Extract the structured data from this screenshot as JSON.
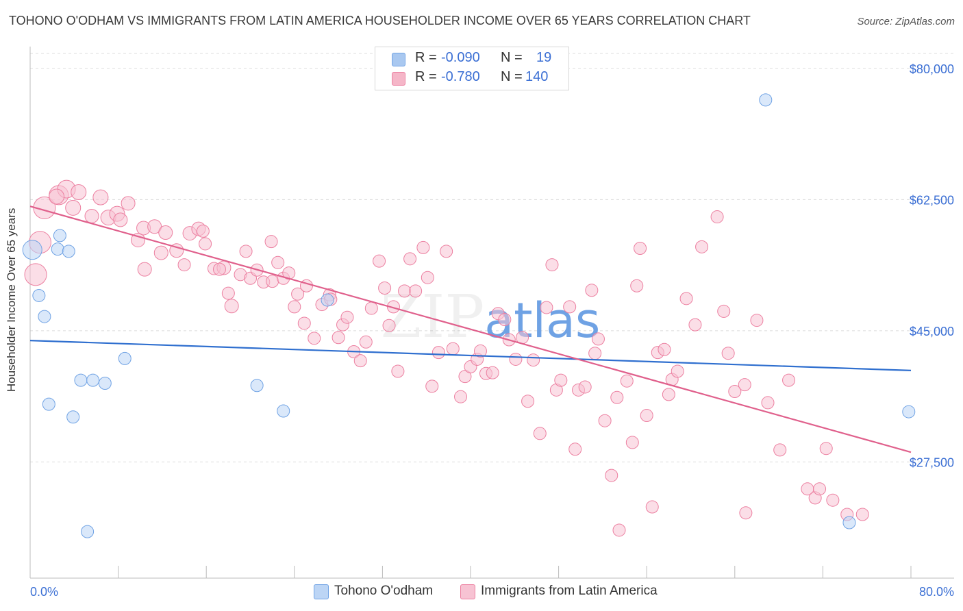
{
  "title": "TOHONO O'ODHAM VS IMMIGRANTS FROM LATIN AMERICA HOUSEHOLDER INCOME OVER 65 YEARS CORRELATION CHART",
  "source": "Source: ZipAtlas.com",
  "watermark": "ZIPatlas",
  "legend": {
    "rows": [
      {
        "r_label": "R =",
        "r_value": "-0.090",
        "n_label": "N =",
        "n_value": "19",
        "color": "#a9c8f0"
      },
      {
        "r_label": "R =",
        "r_value": "-0.780",
        "n_label": "N =",
        "n_value": "140",
        "color": "#f5b6c8"
      }
    ]
  },
  "chart_data": {
    "type": "scatter",
    "xlabel": "",
    "ylabel": "Householder Income Over 65 years",
    "xlim": [
      0,
      80
    ],
    "ylim": [
      12000,
      82000
    ],
    "x_tick_labels": [
      "0.0%",
      "80.0%"
    ],
    "y_ticks": [
      27500,
      45000,
      62500,
      80000
    ],
    "y_tick_labels": [
      "$27,500",
      "$45,000",
      "$62,500",
      "$80,000"
    ],
    "grid": true,
    "legend_position": "top-center",
    "series": [
      {
        "name": "Tohono O'odham",
        "color": "#6fa2e4",
        "fill": "#bcd5f5",
        "trend": {
          "x": [
            0,
            80
          ],
          "y": [
            43700,
            39700
          ]
        },
        "points": [
          [
            0.2,
            55800,
            14
          ],
          [
            2.7,
            57700,
            9
          ],
          [
            2.5,
            55900,
            9
          ],
          [
            3.5,
            55600,
            9
          ],
          [
            0.8,
            49700,
            9
          ],
          [
            1.3,
            46900,
            9
          ],
          [
            8.6,
            41300,
            9
          ],
          [
            4.6,
            38400,
            9
          ],
          [
            5.7,
            38400,
            9
          ],
          [
            6.8,
            38000,
            9
          ],
          [
            1.7,
            35200,
            9
          ],
          [
            3.9,
            33500,
            9
          ],
          [
            20.6,
            37700,
            9
          ],
          [
            23.0,
            34300,
            9
          ],
          [
            27.0,
            49100,
            9
          ],
          [
            66.8,
            75800,
            9
          ],
          [
            79.8,
            34200,
            9
          ],
          [
            74.4,
            19400,
            9
          ],
          [
            5.2,
            18200,
            9
          ]
        ]
      },
      {
        "name": "Immigrants from Latin America",
        "color": "#ec7fa0",
        "fill": "#f7c3d3",
        "trend": {
          "x": [
            0,
            80
          ],
          "y": [
            61600,
            28800
          ]
        },
        "points": [
          [
            0.5,
            52500,
            16
          ],
          [
            0.9,
            56800,
            16
          ],
          [
            1.3,
            61400,
            16
          ],
          [
            2.6,
            63100,
            14
          ],
          [
            3.3,
            63900,
            13
          ],
          [
            4.4,
            63500,
            11
          ],
          [
            3.9,
            61400,
            11
          ],
          [
            2.4,
            62900,
            11
          ],
          [
            6.4,
            62800,
            11
          ],
          [
            5.6,
            60300,
            10
          ],
          [
            7.1,
            60100,
            11
          ],
          [
            7.9,
            60600,
            11
          ],
          [
            8.2,
            59800,
            10
          ],
          [
            8.9,
            62000,
            10
          ],
          [
            9.8,
            57100,
            10
          ],
          [
            10.3,
            58700,
            10
          ],
          [
            11.3,
            58900,
            10
          ],
          [
            12.3,
            58100,
            10
          ],
          [
            11.9,
            55400,
            10
          ],
          [
            10.4,
            53200,
            10
          ],
          [
            13.3,
            55700,
            10
          ],
          [
            14.0,
            53800,
            9
          ],
          [
            14.5,
            58000,
            10
          ],
          [
            15.3,
            58600,
            10
          ],
          [
            15.7,
            58300,
            9
          ],
          [
            15.9,
            56600,
            9
          ],
          [
            16.7,
            53300,
            9
          ],
          [
            17.6,
            53400,
            10
          ],
          [
            17.2,
            53200,
            9
          ],
          [
            18.0,
            50000,
            9
          ],
          [
            18.3,
            48300,
            10
          ],
          [
            19.1,
            52500,
            9
          ],
          [
            19.6,
            55600,
            9
          ],
          [
            20.0,
            52000,
            9
          ],
          [
            20.6,
            53100,
            9
          ],
          [
            21.2,
            51500,
            9
          ],
          [
            22.0,
            51600,
            9
          ],
          [
            21.9,
            56900,
            9
          ],
          [
            22.5,
            54100,
            9
          ],
          [
            23.0,
            52000,
            9
          ],
          [
            23.5,
            52700,
            9
          ],
          [
            24.0,
            48200,
            9
          ],
          [
            24.3,
            49900,
            9
          ],
          [
            25.1,
            51000,
            9
          ],
          [
            24.9,
            46000,
            9
          ],
          [
            25.8,
            44000,
            9
          ],
          [
            26.5,
            48500,
            9
          ],
          [
            27.2,
            49800,
            9
          ],
          [
            27.3,
            49200,
            9
          ],
          [
            28.0,
            44100,
            9
          ],
          [
            28.4,
            45800,
            9
          ],
          [
            28.8,
            46800,
            9
          ],
          [
            29.4,
            42200,
            9
          ],
          [
            30.0,
            41000,
            9
          ],
          [
            30.5,
            43500,
            9
          ],
          [
            31.0,
            48000,
            9
          ],
          [
            31.7,
            54300,
            9
          ],
          [
            32.2,
            50700,
            9
          ],
          [
            32.6,
            45700,
            9
          ],
          [
            33.0,
            48200,
            9
          ],
          [
            33.4,
            39600,
            9
          ],
          [
            34.0,
            50300,
            9
          ],
          [
            34.5,
            54600,
            9
          ],
          [
            35.0,
            50300,
            9
          ],
          [
            35.7,
            56100,
            9
          ],
          [
            36.1,
            52100,
            9
          ],
          [
            36.5,
            37600,
            9
          ],
          [
            37.1,
            42100,
            9
          ],
          [
            37.8,
            55600,
            9
          ],
          [
            38.4,
            42600,
            9
          ],
          [
            39.1,
            36200,
            9
          ],
          [
            39.5,
            38900,
            9
          ],
          [
            40.0,
            40200,
            9
          ],
          [
            40.6,
            41200,
            9
          ],
          [
            40.9,
            42300,
            9
          ],
          [
            41.4,
            39300,
            9
          ],
          [
            42.0,
            39400,
            9
          ],
          [
            42.5,
            47300,
            9
          ],
          [
            43.1,
            46500,
            9
          ],
          [
            43.5,
            43800,
            9
          ],
          [
            44.1,
            41200,
            9
          ],
          [
            44.7,
            44100,
            9
          ],
          [
            45.2,
            35600,
            9
          ],
          [
            45.7,
            41100,
            9
          ],
          [
            46.3,
            31300,
            9
          ],
          [
            46.9,
            48100,
            9
          ],
          [
            47.4,
            53800,
            9
          ],
          [
            47.8,
            37100,
            9
          ],
          [
            48.2,
            38400,
            9
          ],
          [
            49.0,
            48200,
            9
          ],
          [
            49.5,
            29200,
            9
          ],
          [
            49.8,
            37100,
            9
          ],
          [
            50.4,
            37500,
            9
          ],
          [
            51.0,
            50400,
            9
          ],
          [
            51.3,
            42000,
            9
          ],
          [
            51.6,
            43900,
            9
          ],
          [
            52.2,
            33000,
            9
          ],
          [
            52.8,
            25700,
            9
          ],
          [
            53.3,
            36100,
            9
          ],
          [
            53.5,
            18400,
            9
          ],
          [
            54.2,
            38300,
            9
          ],
          [
            54.7,
            30100,
            9
          ],
          [
            55.1,
            51000,
            9
          ],
          [
            55.4,
            56000,
            9
          ],
          [
            56.0,
            33700,
            9
          ],
          [
            56.5,
            21500,
            9
          ],
          [
            57.0,
            42100,
            9
          ],
          [
            57.6,
            42500,
            9
          ],
          [
            58.0,
            36500,
            9
          ],
          [
            58.3,
            38500,
            9
          ],
          [
            58.8,
            39600,
            9
          ],
          [
            59.6,
            49300,
            9
          ],
          [
            60.4,
            45800,
            9
          ],
          [
            61.0,
            56200,
            9
          ],
          [
            62.4,
            60200,
            9
          ],
          [
            63.0,
            47600,
            9
          ],
          [
            63.4,
            42000,
            9
          ],
          [
            64.0,
            36900,
            9
          ],
          [
            64.9,
            37800,
            9
          ],
          [
            65.0,
            20700,
            9
          ],
          [
            66.0,
            46400,
            9
          ],
          [
            67.0,
            35400,
            9
          ],
          [
            68.1,
            29100,
            9
          ],
          [
            68.9,
            38400,
            9
          ],
          [
            70.6,
            23900,
            9
          ],
          [
            71.3,
            22700,
            9
          ],
          [
            71.7,
            23900,
            9
          ],
          [
            72.3,
            29300,
            9
          ],
          [
            72.9,
            22400,
            9
          ],
          [
            74.2,
            20500,
            9
          ],
          [
            75.6,
            20500,
            9
          ]
        ]
      }
    ]
  }
}
